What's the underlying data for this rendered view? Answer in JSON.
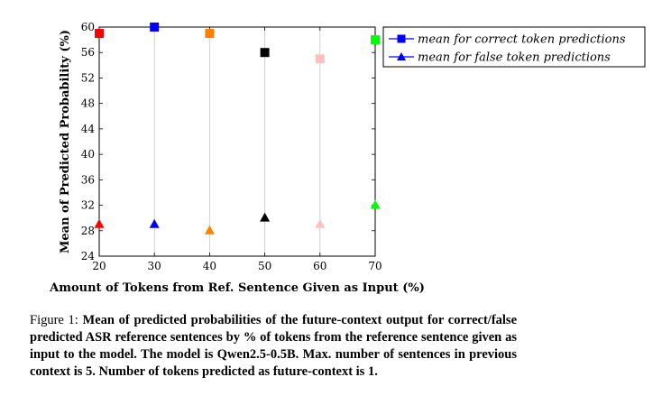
{
  "chart_data": {
    "type": "scatter",
    "ylabel": "Mean of Predicted Probability (%)",
    "xlabel": "Amount of Tokens from Ref. Sentence Given as Input (%)",
    "x": [
      20,
      30,
      40,
      50,
      60,
      70
    ],
    "xticks": [
      20,
      30,
      40,
      50,
      60,
      70
    ],
    "yticks": [
      24,
      28,
      32,
      36,
      40,
      44,
      48,
      52,
      56,
      60
    ],
    "xlim": [
      20,
      70
    ],
    "ylim": [
      24,
      60
    ],
    "grid": "vertical",
    "legend_position": "outside-right",
    "point_colors": [
      "#ff0000",
      "#0000ff",
      "#ff8000",
      "#000000",
      "#ffc0c0",
      "#00ff00"
    ],
    "series": [
      {
        "name": "mean for correct token predictions",
        "marker": "square",
        "legend_color": "#0000ff",
        "values": [
          59,
          60,
          59,
          56,
          55,
          58
        ]
      },
      {
        "name": "mean for false token predictions",
        "marker": "triangle",
        "legend_color": "#0000ff",
        "values": [
          29,
          29,
          28,
          30,
          29,
          32
        ]
      }
    ]
  },
  "caption": {
    "label": "Figure 1:",
    "text": "Mean of predicted probabilities of the future-context output for correct/false predicted ASR reference sentences by % of tokens from the reference sentence given as input to the model. The model is Qwen2.5-0.5B. Max. number of sentences in previous context is 5. Number of tokens predicted as future-context is 1."
  }
}
